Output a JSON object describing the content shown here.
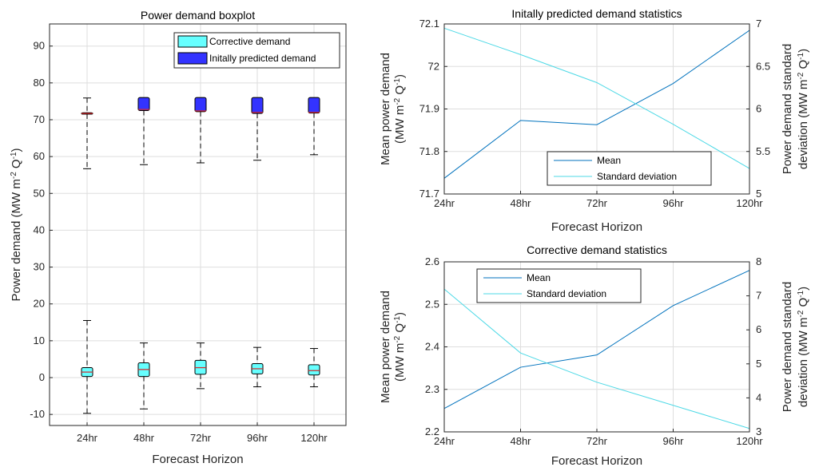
{
  "chart_data": [
    {
      "type": "box",
      "title": "Power demand boxplot",
      "xlabel": "Forecast Horizon",
      "ylabel": "Power demand (MW m",
      "ylabel_sup1": "-2",
      "ylabel_mid": " Q",
      "ylabel_sup2": "-1",
      "ylabel_end": ")",
      "categories": [
        "24hr",
        "48hr",
        "72hr",
        "96hr",
        "120hr"
      ],
      "ylim": [
        -13,
        96
      ],
      "yticks": [
        -10,
        0,
        10,
        20,
        30,
        40,
        50,
        60,
        70,
        80,
        90
      ],
      "grid": true,
      "legend_position": "top-right",
      "series": [
        {
          "name": "Corrective demand",
          "color": "#66ffff",
          "boxes": [
            {
              "whisker_low": -9.7,
              "q1": 0.3,
              "median": 1.5,
              "q3": 2.7,
              "whisker_high": 15.5
            },
            {
              "whisker_low": -8.5,
              "q1": 0.3,
              "median": 2.2,
              "q3": 4.0,
              "whisker_high": 9.4
            },
            {
              "whisker_low": -3.0,
              "q1": 0.9,
              "median": 2.7,
              "q3": 4.7,
              "whisker_high": 9.4
            },
            {
              "whisker_low": -2.5,
              "q1": 1.0,
              "median": 2.4,
              "q3": 3.8,
              "whisker_high": 8.2
            },
            {
              "whisker_low": -2.5,
              "q1": 0.7,
              "median": 1.9,
              "q3": 3.5,
              "whisker_high": 7.9
            }
          ],
          "outliers": [
            [],
            [],
            [],
            [],
            []
          ]
        },
        {
          "name": "Initally predicted demand",
          "color": "#3333ff",
          "boxes": [
            {
              "whisker_low": 56.7,
              "q1": 71.5,
              "median": 71.7,
              "q3": 71.9,
              "whisker_high": 75.9
            },
            {
              "whisker_low": 57.8,
              "q1": 72.5,
              "median": 72.8,
              "q3": 76.0,
              "whisker_high": 76.0
            },
            {
              "whisker_low": 58.3,
              "q1": 72.2,
              "median": 72.4,
              "q3": 76.0,
              "whisker_high": 76.0
            },
            {
              "whisker_low": 59.0,
              "q1": 71.7,
              "median": 72.0,
              "q3": 76.0,
              "whisker_high": 76.0
            },
            {
              "whisker_low": 60.5,
              "q1": 71.8,
              "median": 72.0,
              "q3": 76.0,
              "whisker_high": 76.0
            }
          ],
          "outliers": [
            [],
            [],
            [],
            [],
            []
          ]
        }
      ]
    },
    {
      "type": "line",
      "title": "Initally predicted demand statistics",
      "xlabel": "Forecast Horizon",
      "ylabel_left_line1": "Mean power demand",
      "ylabel_left_line2": "(MW m",
      "ylabel_left_sup1": "-2",
      "ylabel_left_mid": " Q",
      "ylabel_left_sup2": "-1",
      "ylabel_left_end": ")",
      "ylabel_right_line1": "Power demand standard",
      "ylabel_right_line2": "deviation (MW m",
      "ylabel_right_sup1": "-2",
      "ylabel_right_mid": " Q",
      "ylabel_right_sup2": "-1",
      "ylabel_right_end": ")",
      "categories": [
        "24hr",
        "48hr",
        "72hr",
        "96hr",
        "120hr"
      ],
      "ylim_left": [
        71.7,
        72.1
      ],
      "yticks_left": [
        "71.7",
        "71.8",
        "71.9",
        "72",
        "72.1"
      ],
      "ylim_right": [
        5,
        7
      ],
      "yticks_right": [
        "5",
        "5.5",
        "6",
        "6.5",
        "7"
      ],
      "grid": true,
      "legend_position": "bottom-right",
      "series": [
        {
          "name": "Mean",
          "axis": "left",
          "color": "#0072bd",
          "values": [
            71.737,
            71.873,
            71.863,
            71.96,
            72.085
          ]
        },
        {
          "name": "Standard deviation",
          "axis": "right",
          "color": "#4dd9e6",
          "values": [
            6.95,
            6.64,
            6.31,
            5.82,
            5.3
          ]
        }
      ]
    },
    {
      "type": "line",
      "title": "Corrective demand statistics",
      "xlabel": "Forecast Horizon",
      "ylabel_left_line1": "Mean power demand",
      "ylabel_left_line2": "(MW m",
      "ylabel_left_sup1": "-2",
      "ylabel_left_mid": " Q",
      "ylabel_left_sup2": "-1",
      "ylabel_left_end": ")",
      "ylabel_right_line1": "Power demand standard",
      "ylabel_right_line2": "deviation (MW m",
      "ylabel_right_sup1": "-2",
      "ylabel_right_mid": " Q",
      "ylabel_right_sup2": "-1",
      "ylabel_right_end": ")",
      "categories": [
        "24hr",
        "48hr",
        "72hr",
        "96hr",
        "120hr"
      ],
      "ylim_left": [
        2.2,
        2.6
      ],
      "yticks_left": [
        "2.2",
        "2.3",
        "2.4",
        "2.5",
        "2.6"
      ],
      "ylim_right": [
        3,
        8
      ],
      "yticks_right": [
        "3",
        "4",
        "5",
        "6",
        "7",
        "8"
      ],
      "grid": true,
      "legend_position": "top-left",
      "series": [
        {
          "name": "Mean",
          "axis": "left",
          "color": "#0072bd",
          "values": [
            2.255,
            2.352,
            2.381,
            2.497,
            2.58
          ]
        },
        {
          "name": "Standard deviation",
          "axis": "right",
          "color": "#4dd9e6",
          "values": [
            7.2,
            5.32,
            4.46,
            3.78,
            3.1
          ]
        }
      ]
    }
  ]
}
